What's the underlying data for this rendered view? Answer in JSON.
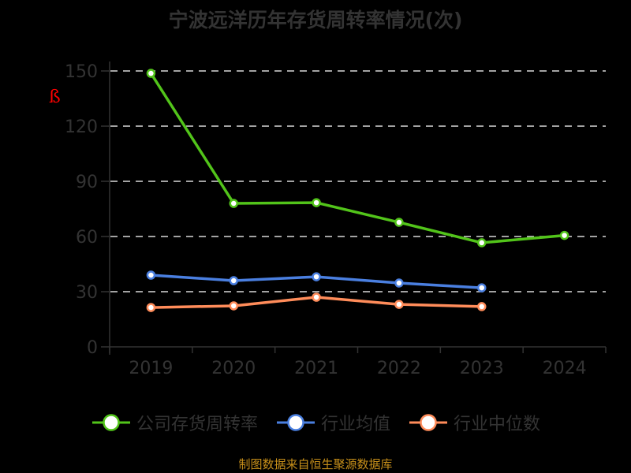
{
  "title": "宁波远洋历年存货周转率情况(次)",
  "source": "制图数据来自恒生聚源数据库",
  "annotation_glyph": "ß",
  "colors": {
    "background": "#000000",
    "axis": "#333333",
    "grid": "#d9d9d9",
    "company": "#52c41a",
    "industry_avg": "#4a7fe0",
    "industry_median": "#ff8c5a",
    "source_text": "#c8901a"
  },
  "legend": [
    {
      "label": "公司存货周转率",
      "color": "#52c41a",
      "key": "company"
    },
    {
      "label": "行业均值",
      "color": "#4a7fe0",
      "key": "industry_avg"
    },
    {
      "label": "行业中位数",
      "color": "#ff8c5a",
      "key": "industry_median"
    }
  ],
  "chart_data": {
    "type": "line",
    "title": "宁波远洋历年存货周转率情况(次)",
    "xlabel": "",
    "ylabel": "",
    "categories": [
      "2019",
      "2020",
      "2021",
      "2022",
      "2023",
      "2024"
    ],
    "yticks": [
      0,
      30,
      60,
      90,
      120,
      150
    ],
    "ylim": [
      0,
      150
    ],
    "grid": true,
    "legend_position": "bottom",
    "series": [
      {
        "name": "公司存货周转率",
        "color": "#52c41a",
        "values": [
          148.7,
          78.0,
          78.4,
          67.7,
          56.6,
          60.6
        ]
      },
      {
        "name": "行业均值",
        "color": "#4a7fe0",
        "values": [
          39.0,
          36.0,
          38.1,
          34.7,
          32.1,
          null
        ]
      },
      {
        "name": "行业中位数",
        "color": "#ff8c5a",
        "values": [
          21.4,
          22.3,
          27.0,
          23.1,
          21.9,
          null
        ]
      }
    ]
  }
}
